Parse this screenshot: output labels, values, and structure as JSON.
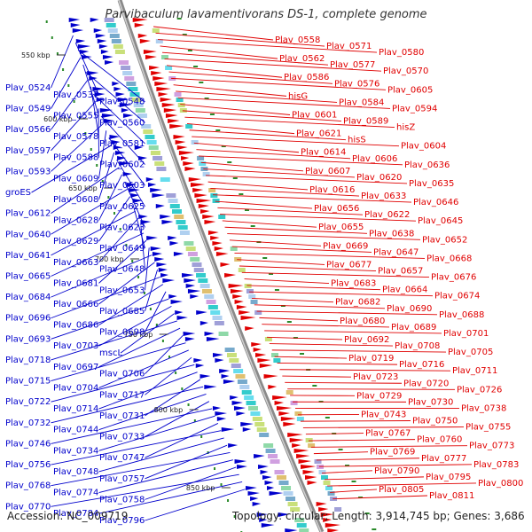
{
  "title": "Parvibaculum lavamentivorans DS-1, complete genome",
  "accession": "Accession: NC_009719",
  "summary": "Topology: circular; Length: 3,914,745 bp; Genes: 3,686",
  "colors": {
    "forward": "#e00000",
    "reverse": "#0000cc",
    "backbone": "#8a8a8a",
    "gc": "#2a8a2a"
  },
  "ticks": [
    "550 kbp",
    "600 kbp",
    "650 kbp",
    "700 kbp",
    "750 kbp",
    "800 kbp",
    "850 kbp"
  ],
  "left_labels": [
    "Plav_0524",
    "Plav_0537",
    "Plav_0548",
    "Plav_0549",
    "Plav_0555",
    "Plav_0560",
    "Plav_0566",
    "Plav_0578",
    "Plav_0581",
    "Plav_0597",
    "Plav_0588",
    "Plav_0602",
    "Plav_0593",
    "Plav_0609",
    "Plav_0603",
    "groES",
    "Plav_0608",
    "Plav_0625",
    "Plav_0612",
    "Plav_0628",
    "Plav_0623",
    "Plav_0640",
    "Plav_0629",
    "Plav_0649",
    "Plav_0641",
    "Plav_0663",
    "Plav_0648",
    "Plav_0665",
    "Plav_0681",
    "Plav_0653",
    "Plav_0684",
    "Plav_0666",
    "Plav_0685",
    "Plav_0696",
    "Plav_0686",
    "Plav_0698",
    "Plav_0693",
    "Plav_0703",
    "mscL",
    "Plav_0718",
    "Plav_0697",
    "Plav_0706",
    "Plav_0715",
    "Plav_0704",
    "Plav_0717",
    "Plav_0722",
    "Plav_0714",
    "Plav_0731",
    "Plav_0732",
    "Plav_0744",
    "Plav_0733",
    "Plav_0746",
    "Plav_0734",
    "Plav_0747",
    "Plav_0756",
    "Plav_0748",
    "Plav_0757",
    "Plav_0768",
    "Plav_0774",
    "Plav_0758",
    "Plav_0770",
    "Plav_0784",
    "Plav_0796"
  ],
  "right_labels": [
    "Plav_0558",
    "Plav_0571",
    "Plav_0580",
    "Plav_0562",
    "Plav_0577",
    "Plav_0570",
    "Plav_0586",
    "Plav_0576",
    "Plav_0605",
    "hisG",
    "Plav_0584",
    "Plav_0594",
    "Plav_0601",
    "Plav_0589",
    "hisZ",
    "Plav_0621",
    "hisS",
    "Plav_0604",
    "Plav_0614",
    "Plav_0606",
    "Plav_0636",
    "Plav_0607",
    "Plav_0620",
    "Plav_0635",
    "Plav_0616",
    "Plav_0633",
    "Plav_0646",
    "Plav_0656",
    "Plav_0622",
    "Plav_0645",
    "Plav_0655",
    "Plav_0638",
    "Plav_0652",
    "Plav_0669",
    "Plav_0647",
    "Plav_0668",
    "Plav_0677",
    "Plav_0657",
    "Plav_0676",
    "Plav_0683",
    "Plav_0664",
    "Plav_0674",
    "Plav_0682",
    "Plav_0690",
    "Plav_0688",
    "Plav_0680",
    "Plav_0689",
    "Plav_0701",
    "Plav_0692",
    "Plav_0708",
    "Plav_0705",
    "Plav_0719",
    "Plav_0716",
    "Plav_0711",
    "Plav_0723",
    "Plav_0720",
    "Plav_0726",
    "Plav_0729",
    "Plav_0730",
    "Plav_0738",
    "Plav_0743",
    "Plav_0750",
    "Plav_0755",
    "Plav_0767",
    "Plav_0760",
    "Plav_0773",
    "Plav_0769",
    "Plav_0777",
    "Plav_0783",
    "Plav_0790",
    "Plav_0795",
    "Plav_0800",
    "Plav_0805",
    "Plav_0811"
  ]
}
